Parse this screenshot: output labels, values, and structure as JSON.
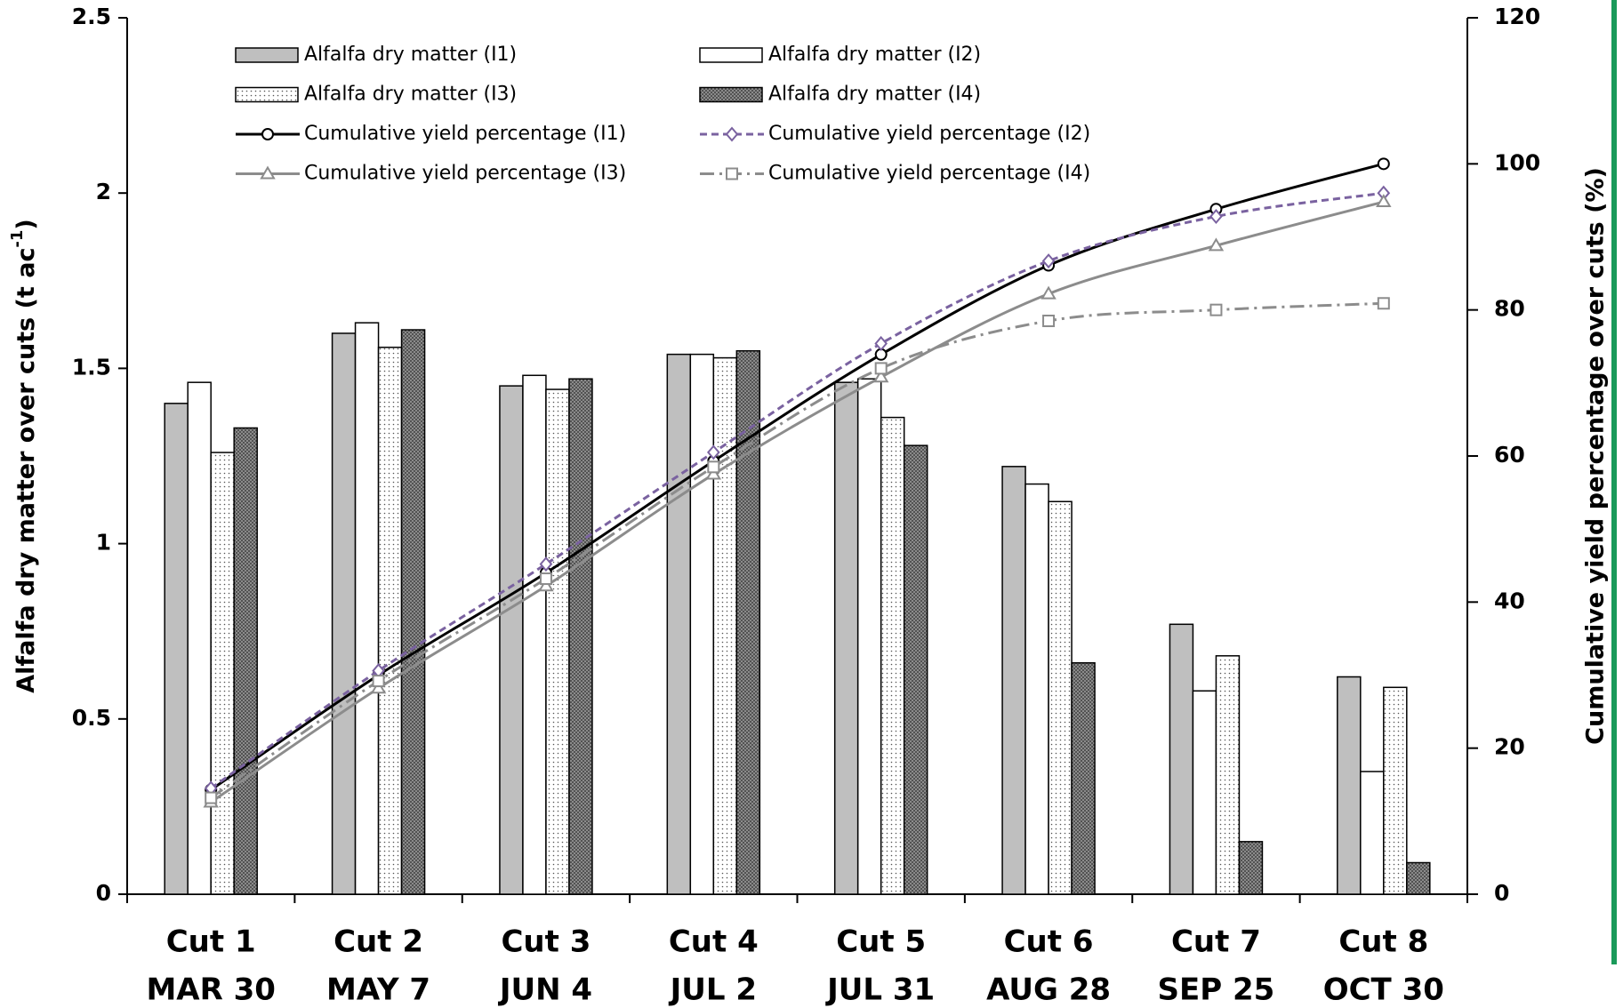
{
  "chart_data": {
    "type": "bar_line",
    "categories": [
      [
        "Cut 1",
        "MAR 30"
      ],
      [
        "Cut 2",
        "MAY 7"
      ],
      [
        "Cut 3",
        "JUN 4"
      ],
      [
        "Cut 4",
        "JUL 2"
      ],
      [
        "Cut 5",
        "JUL 31"
      ],
      [
        "Cut 6",
        "AUG 28"
      ],
      [
        "Cut 7",
        "SEP 25"
      ],
      [
        "Cut 8",
        "OCT 30"
      ]
    ],
    "ylabel": {
      "text": "Alfalfa dry matter over cuts (t ac",
      "sup": "-1",
      "end": ")"
    },
    "y2label": "Cumulative yield percentage over cuts (%)",
    "ylim": [
      0,
      2.5
    ],
    "yticks": [
      0,
      0.5,
      1,
      1.5,
      2,
      2.5
    ],
    "y2lim": [
      0,
      120
    ],
    "y2ticks": [
      0,
      20,
      40,
      60,
      80,
      100,
      120
    ],
    "series": [
      {
        "name": "Alfalfa dry matter (I1)",
        "kind": "bar",
        "color": "#bfbfbf",
        "pattern": "none",
        "values": [
          1.4,
          1.6,
          1.45,
          1.54,
          1.46,
          1.22,
          0.77,
          0.62
        ]
      },
      {
        "name": "Alfalfa dry matter (I2)",
        "kind": "bar",
        "color": "#ffffff",
        "pattern": "none",
        "values": [
          1.46,
          1.63,
          1.48,
          1.54,
          1.47,
          1.17,
          0.58,
          0.35
        ]
      },
      {
        "name": "Alfalfa dry matter (I3)",
        "kind": "bar",
        "color": "#ffffff",
        "pattern": "dots",
        "values": [
          1.26,
          1.56,
          1.44,
          1.53,
          1.36,
          1.12,
          0.68,
          0.59
        ]
      },
      {
        "name": "Alfalfa dry matter (I4)",
        "kind": "bar",
        "color": "#808080",
        "pattern": "crosshatch",
        "values": [
          1.33,
          1.61,
          1.47,
          1.55,
          1.28,
          0.66,
          0.15,
          0.09
        ]
      },
      {
        "name": "Cumulative yield percentage (I1)",
        "kind": "line",
        "axis": "y2",
        "color": "#000000",
        "dash": "none",
        "marker": "circle",
        "values": [
          14.3,
          30.0,
          44.0,
          59.3,
          73.9,
          86.1,
          93.8,
          100
        ]
      },
      {
        "name": "Cumulative yield percentage (I2)",
        "kind": "line",
        "axis": "y2",
        "color": "#7a62a0",
        "dash": "8 5",
        "marker": "diamond",
        "values": [
          14.5,
          30.6,
          45.2,
          60.5,
          75.4,
          86.7,
          92.8,
          96.0
        ]
      },
      {
        "name": "Cumulative yield percentage (I3)",
        "kind": "line",
        "axis": "y2",
        "color": "#8c8c8c",
        "dash": "none",
        "marker": "triangle",
        "values": [
          12.6,
          28.2,
          42.2,
          57.5,
          70.8,
          82.2,
          88.8,
          94.8
        ]
      },
      {
        "name": "Cumulative yield percentage (I4)",
        "kind": "line",
        "axis": "y2",
        "color": "#8c8c8c",
        "dash": "16 6 3 6",
        "marker": "square",
        "values": [
          13.2,
          29.2,
          43.2,
          58.5,
          72.0,
          78.5,
          80.0,
          80.9
        ]
      }
    ]
  }
}
